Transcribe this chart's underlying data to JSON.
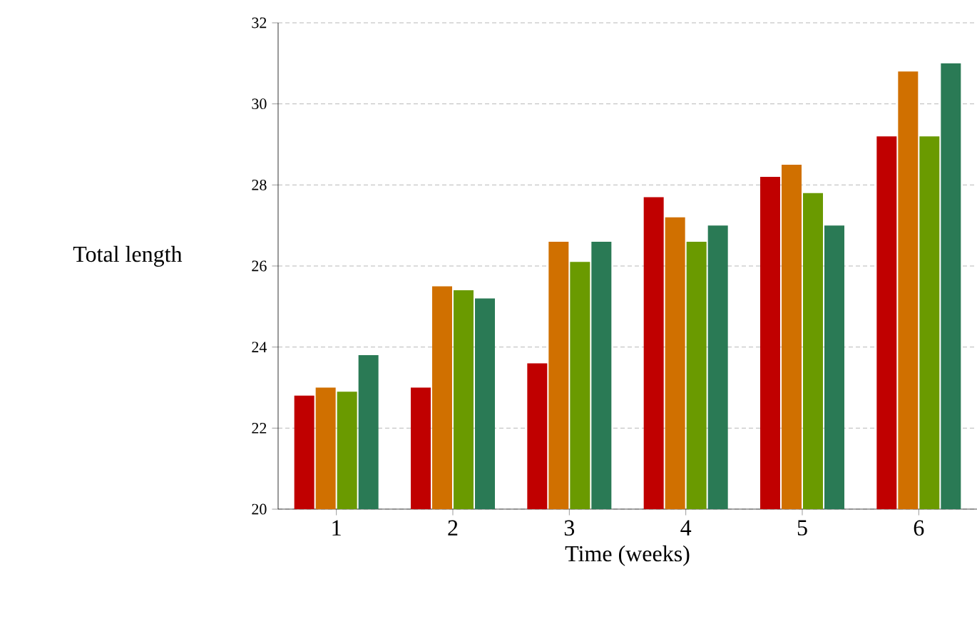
{
  "chart_data": {
    "type": "bar",
    "xlabel": "Time (weeks)",
    "ylabel": "Total length",
    "categories": [
      "1",
      "2",
      "3",
      "4",
      "5",
      "6"
    ],
    "series": [
      {
        "color": "#c00000",
        "values": [
          22.8,
          23.0,
          23.6,
          27.7,
          28.2,
          29.2
        ]
      },
      {
        "color": "#d07000",
        "values": [
          23.0,
          25.5,
          26.6,
          27.2,
          28.5,
          30.8
        ]
      },
      {
        "color": "#6a9a00",
        "values": [
          22.9,
          25.4,
          26.1,
          26.6,
          27.8,
          29.2
        ]
      },
      {
        "color": "#2a7a55",
        "values": [
          23.8,
          25.2,
          26.6,
          27.0,
          27.0,
          31.0
        ]
      }
    ],
    "ylim": [
      20,
      32
    ],
    "yticks": [
      20,
      22,
      24,
      26,
      28,
      30,
      32
    ],
    "grid": "y"
  }
}
